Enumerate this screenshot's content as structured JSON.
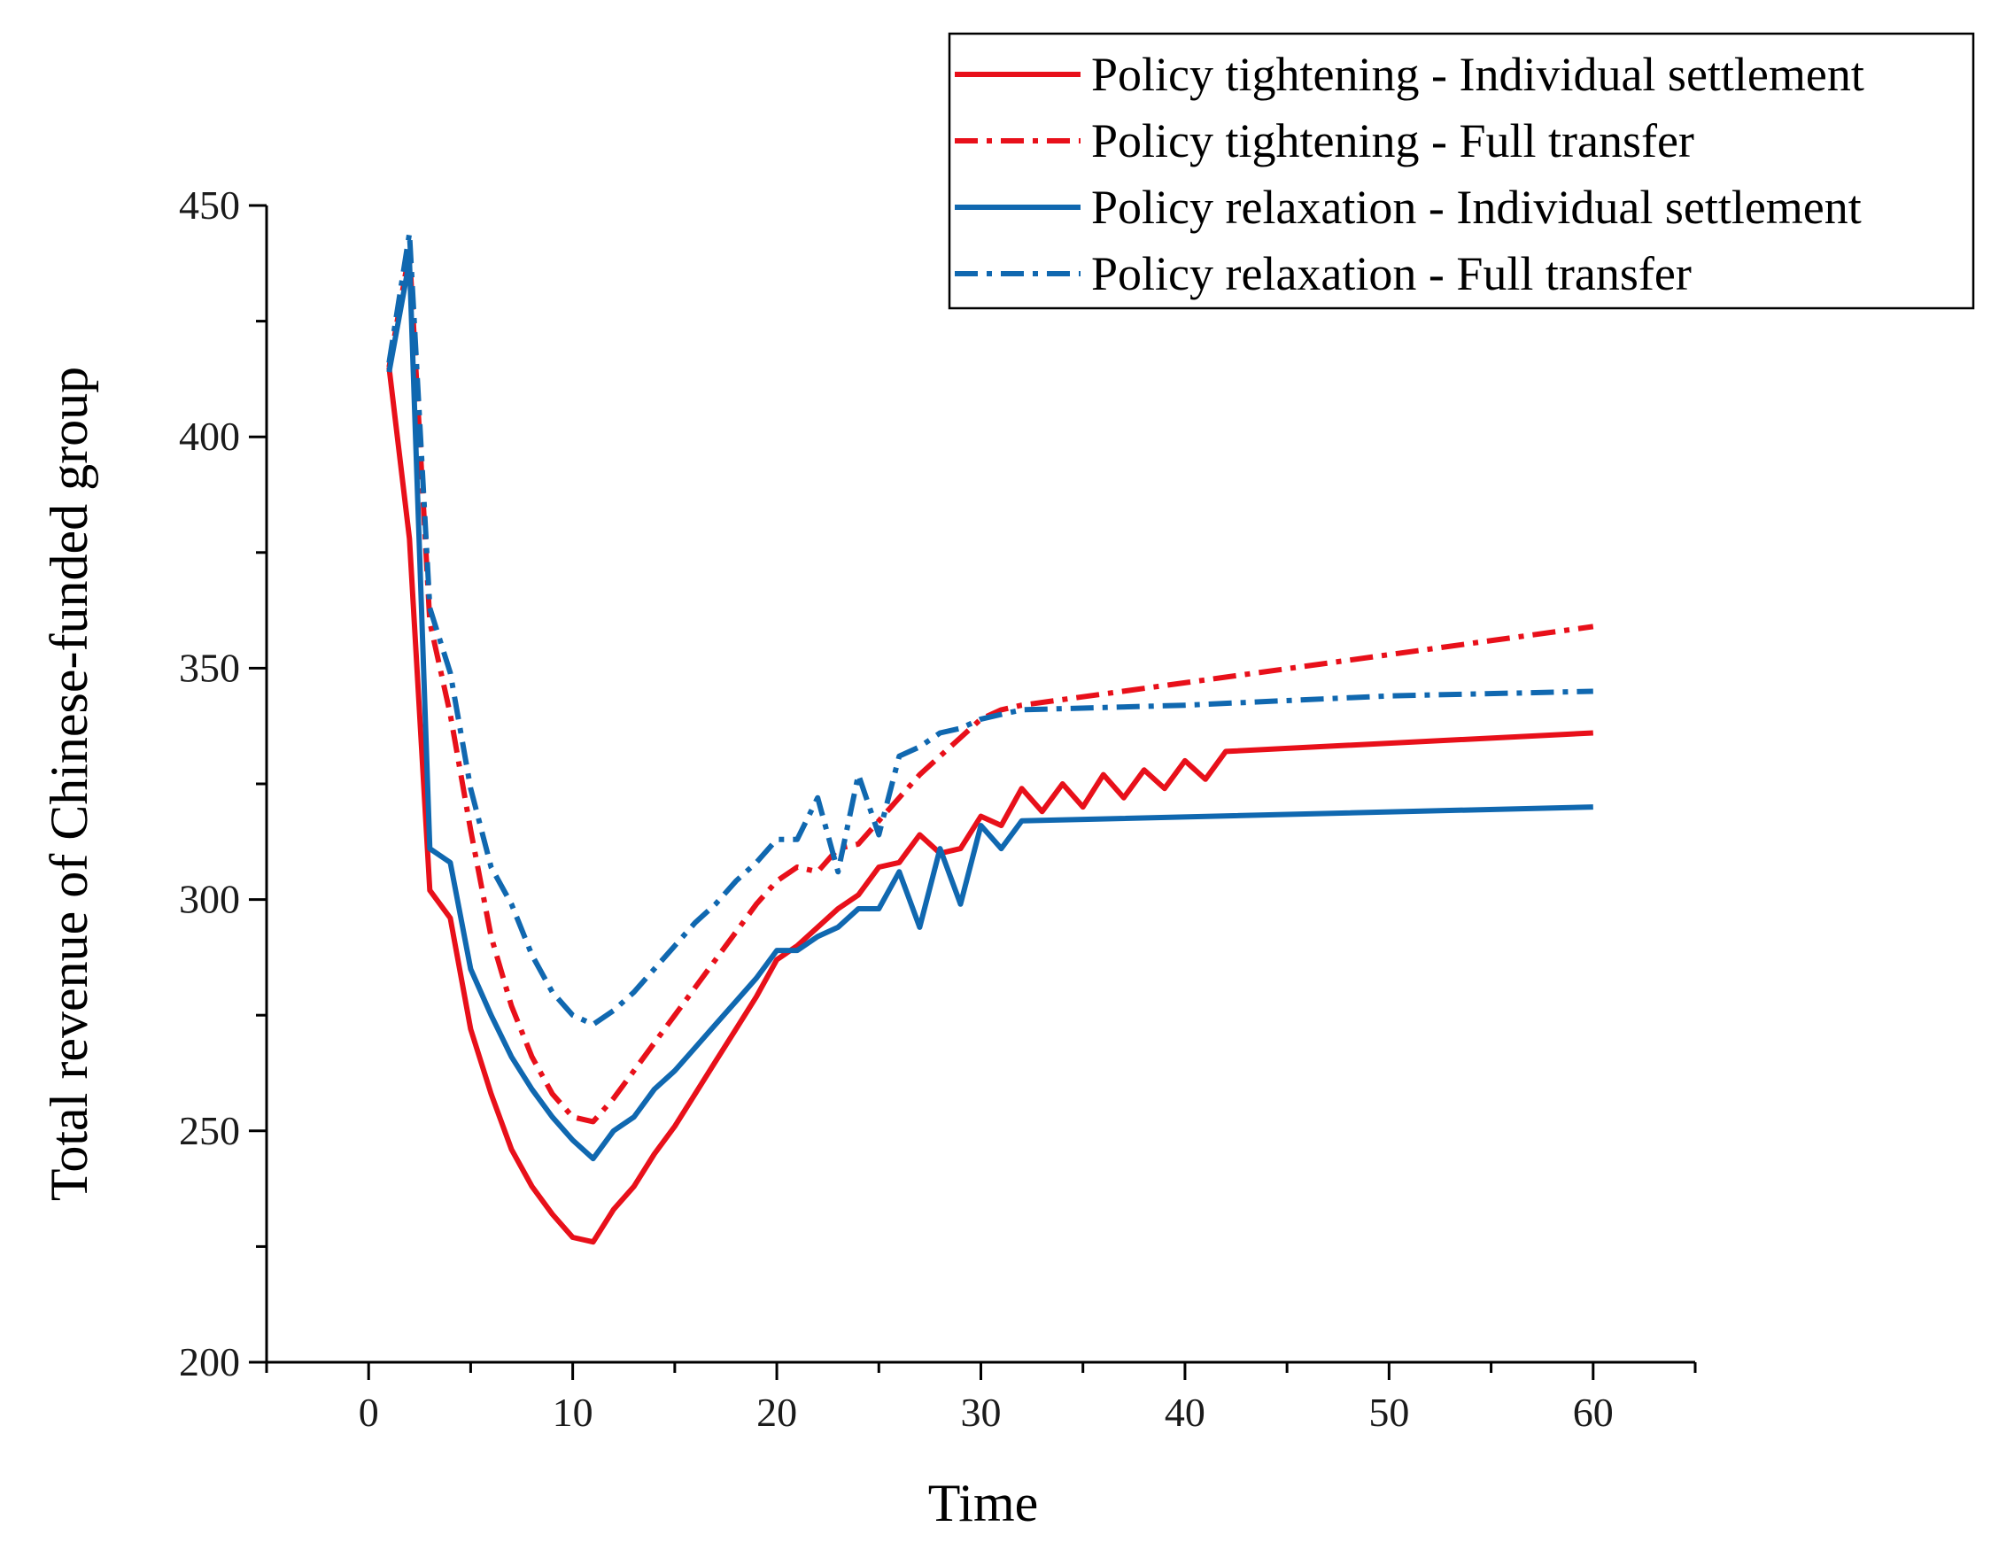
{
  "chart_data": {
    "type": "line",
    "title": "",
    "xlabel": "Time",
    "ylabel": "Total revenue of Chinese-funded group",
    "xlim": [
      -5,
      65
    ],
    "ylim": [
      200,
      450
    ],
    "x_ticks": [
      0,
      10,
      20,
      30,
      40,
      50,
      60
    ],
    "y_ticks": [
      200,
      250,
      300,
      350,
      400,
      450
    ],
    "legend_position": "top-right",
    "series": [
      {
        "name": "Policy tightening - Individual settlement",
        "color": "#e8101a",
        "style": "solid",
        "x": [
          1,
          2,
          3,
          4,
          5,
          6,
          7,
          8,
          9,
          10,
          11,
          12,
          13,
          14,
          15,
          16,
          17,
          18,
          19,
          20,
          21,
          22,
          23,
          24,
          25,
          26,
          27,
          28,
          29,
          30,
          31,
          32,
          33,
          34,
          35,
          36,
          37,
          38,
          39,
          40,
          41,
          42,
          60
        ],
        "values": [
          415,
          378,
          302,
          296,
          272,
          258,
          246,
          238,
          232,
          227,
          226,
          233,
          238,
          245,
          251,
          258,
          265,
          272,
          279,
          287,
          290,
          294,
          298,
          301,
          307,
          308,
          314,
          310,
          311,
          318,
          316,
          324,
          319,
          325,
          320,
          327,
          322,
          328,
          324,
          330,
          326,
          332,
          336
        ]
      },
      {
        "name": "Policy tightening - Full transfer",
        "color": "#e8101a",
        "style": "dashdot",
        "x": [
          1,
          2,
          3,
          4,
          5,
          6,
          7,
          8,
          9,
          10,
          11,
          12,
          13,
          14,
          15,
          16,
          17,
          18,
          19,
          20,
          21,
          22,
          23,
          24,
          25,
          26,
          27,
          28,
          29,
          30,
          31,
          32,
          60
        ],
        "values": [
          415,
          440,
          360,
          340,
          315,
          292,
          277,
          266,
          258,
          253,
          252,
          257,
          263,
          269,
          275,
          281,
          287,
          293,
          299,
          304,
          307,
          306,
          311,
          312,
          317,
          322,
          327,
          331,
          335,
          339,
          341,
          342,
          359
        ]
      },
      {
        "name": "Policy relaxation - Individual settlement",
        "color": "#1068b0",
        "style": "solid",
        "x": [
          1,
          2,
          3,
          4,
          5,
          6,
          7,
          8,
          9,
          10,
          11,
          12,
          13,
          14,
          15,
          16,
          17,
          18,
          19,
          20,
          21,
          22,
          23,
          24,
          25,
          26,
          27,
          28,
          29,
          30,
          31,
          32,
          60
        ],
        "values": [
          414,
          438,
          311,
          308,
          285,
          275,
          266,
          259,
          253,
          248,
          244,
          250,
          253,
          259,
          263,
          268,
          273,
          278,
          283,
          289,
          289,
          292,
          294,
          298,
          298,
          306,
          294,
          311,
          299,
          316,
          311,
          317,
          320
        ]
      },
      {
        "name": "Policy relaxation - Full transfer",
        "color": "#1068b0",
        "style": "dashdot",
        "x": [
          1,
          2,
          3,
          4,
          5,
          6,
          7,
          8,
          9,
          10,
          11,
          12,
          13,
          14,
          15,
          16,
          17,
          18,
          19,
          20,
          21,
          22,
          23,
          24,
          25,
          26,
          27,
          28,
          29,
          30,
          31,
          32,
          40,
          50,
          60
        ],
        "values": [
          416,
          444,
          363,
          349,
          324,
          307,
          299,
          288,
          280,
          275,
          273,
          276,
          280,
          285,
          290,
          295,
          299,
          304,
          308,
          313,
          313,
          322,
          306,
          327,
          314,
          331,
          333,
          336,
          337,
          339,
          340,
          341,
          342,
          344,
          345
        ]
      }
    ]
  }
}
